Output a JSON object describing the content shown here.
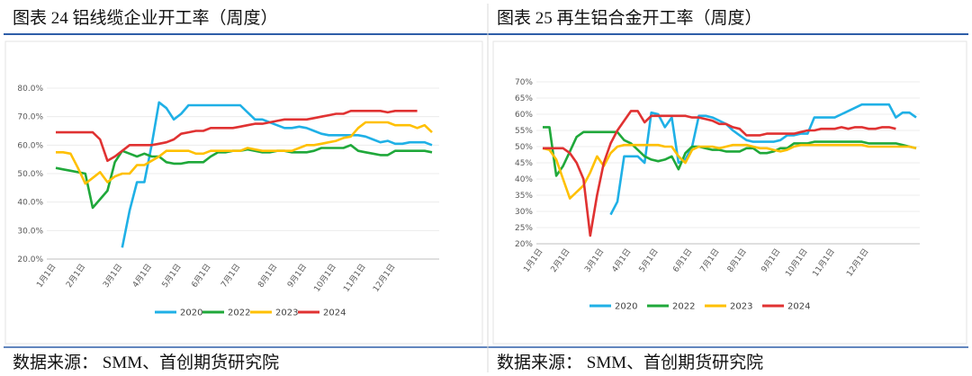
{
  "chart_data": [
    {
      "type": "line",
      "title": "图表 24 铝线缆企业开工率（周度）",
      "source": "数据来源： SMM、首创期货研究院",
      "categories": [
        "1月1日",
        null,
        null,
        null,
        "2月1日",
        null,
        null,
        null,
        null,
        "3月1日",
        null,
        null,
        null,
        "4月1日",
        null,
        null,
        null,
        "5月1日",
        null,
        null,
        null,
        "6月1日",
        null,
        null,
        null,
        "7月1日",
        null,
        null,
        null,
        null,
        "8月1日",
        null,
        null,
        null,
        "9月1日",
        null,
        null,
        null,
        "10月1日",
        null,
        null,
        null,
        "11月1日",
        null,
        null,
        null,
        "12月1日",
        null,
        null,
        null,
        null,
        null
      ],
      "ylim": [
        20,
        80
      ],
      "yticks": [
        {
          "value": 20,
          "label": "20.0%"
        },
        {
          "value": 30,
          "label": "30.0%"
        },
        {
          "value": 40,
          "label": "40.0%"
        },
        {
          "value": 50,
          "label": "50.0%"
        },
        {
          "value": 60,
          "label": "60.0%"
        },
        {
          "value": 70,
          "label": "70.0%"
        },
        {
          "value": 80,
          "label": "80.0%"
        }
      ],
      "grid": true,
      "series": [
        {
          "name": "2020",
          "color": "#1fb0e6",
          "values": [
            null,
            null,
            null,
            null,
            null,
            null,
            null,
            null,
            null,
            24,
            37,
            47,
            47,
            60,
            75,
            73,
            69,
            71,
            74,
            74,
            74,
            74,
            74,
            74,
            74,
            74,
            71.5,
            69,
            69,
            68,
            67,
            66,
            66,
            66.5,
            66,
            65,
            64,
            63.5,
            63.5,
            63.5,
            63.5,
            63.5,
            63,
            62,
            61,
            61.5,
            60.5,
            60.5,
            61,
            61,
            61,
            60
          ]
        },
        {
          "name": "2022",
          "color": "#1fa83a",
          "values": [
            52,
            51.5,
            51,
            50.5,
            50,
            38,
            41,
            44,
            54,
            58,
            57,
            56,
            57,
            56,
            56,
            54,
            53.5,
            53.5,
            54,
            54,
            54,
            56,
            57.5,
            57.5,
            58,
            58,
            58.5,
            58,
            57.5,
            57.5,
            58,
            58,
            57.5,
            57.5,
            57.5,
            58,
            59,
            59,
            59,
            59,
            60,
            58,
            57.5,
            57,
            56.5,
            56.5,
            58,
            58,
            58,
            58,
            58,
            57.5
          ]
        },
        {
          "name": "2023",
          "color": "#ffc000",
          "values": [
            57.5,
            57.5,
            57,
            52,
            46.5,
            48.5,
            50.5,
            47,
            49,
            50,
            50,
            53,
            53,
            54.5,
            56,
            58,
            58,
            58,
            58,
            57,
            57,
            58,
            58,
            58,
            58,
            58,
            59,
            58.5,
            58,
            58,
            58,
            58,
            58,
            59,
            60,
            60,
            60.5,
            61,
            61.5,
            62.5,
            63,
            66,
            68,
            68,
            68,
            68,
            67,
            67,
            67,
            66,
            67,
            64.5
          ]
        },
        {
          "name": "2024",
          "color": "#e03232",
          "values": [
            64.5,
            64.5,
            64.5,
            64.5,
            64.5,
            64.5,
            62,
            54.5,
            56,
            58,
            60,
            60,
            60,
            60,
            60.5,
            61,
            62,
            64,
            64.5,
            65,
            65,
            66,
            66,
            66,
            66,
            66.5,
            67,
            67.5,
            67.5,
            68,
            68.5,
            69,
            69,
            69,
            69,
            69.5,
            70,
            70.5,
            71,
            71,
            72,
            72,
            72,
            72,
            72,
            71.5,
            72,
            72,
            72,
            72,
            null,
            null
          ]
        }
      ]
    },
    {
      "type": "line",
      "title": "图表 25 再生铝合金开工率（周度）",
      "source": "数据来源： SMM、首创期货研究院",
      "categories": [
        "1月1日",
        null,
        null,
        null,
        "2月1日",
        null,
        null,
        null,
        null,
        "3月1日",
        null,
        null,
        null,
        "4月1日",
        null,
        null,
        null,
        "5月1日",
        null,
        null,
        null,
        null,
        "6月1日",
        null,
        null,
        null,
        "7月1日",
        null,
        null,
        null,
        "8月1日",
        null,
        null,
        null,
        null,
        "9月1日",
        null,
        null,
        null,
        "10月1日",
        null,
        null,
        null,
        "11月1日",
        null,
        null,
        null,
        null,
        "12月1日",
        null,
        null,
        null,
        null,
        null,
        null,
        null
      ],
      "ylim": [
        20,
        70
      ],
      "yticks": [
        {
          "value": 20,
          "label": "20%"
        },
        {
          "value": 25,
          "label": "25%"
        },
        {
          "value": 30,
          "label": "30%"
        },
        {
          "value": 35,
          "label": "35%"
        },
        {
          "value": 40,
          "label": "40%"
        },
        {
          "value": 45,
          "label": "45%"
        },
        {
          "value": 50,
          "label": "50%"
        },
        {
          "value": 55,
          "label": "55%"
        },
        {
          "value": 60,
          "label": "60%"
        },
        {
          "value": 65,
          "label": "65%"
        },
        {
          "value": 70,
          "label": "70%"
        }
      ],
      "grid": true,
      "series": [
        {
          "name": "2020",
          "color": "#1fb0e6",
          "values": [
            null,
            null,
            null,
            null,
            null,
            null,
            null,
            null,
            null,
            null,
            29,
            33,
            47,
            47,
            47,
            45,
            60.5,
            60,
            56,
            59,
            45,
            46,
            50,
            59.5,
            59.5,
            59,
            58,
            57,
            55,
            53.5,
            52,
            51.5,
            51.5,
            51.5,
            51.5,
            52,
            53.5,
            53.5,
            54,
            54,
            59,
            59,
            59,
            59,
            60,
            61,
            62,
            63,
            63,
            63,
            63,
            63,
            59,
            60.5,
            60.5,
            59
          ]
        },
        {
          "name": "2022",
          "color": "#1fa83a",
          "values": [
            56,
            56,
            41,
            44,
            48.5,
            53,
            54.5,
            54.5,
            54.5,
            54.5,
            54.5,
            54.5,
            52,
            51,
            49,
            47,
            46,
            45.5,
            46,
            47,
            43,
            48,
            50,
            50,
            49.5,
            49,
            49,
            48.5,
            48.5,
            48.5,
            49.5,
            49.5,
            48,
            48,
            48.5,
            49.5,
            49.5,
            51,
            51,
            51,
            51.5,
            51.5,
            51.5,
            51.5,
            51.5,
            51.5,
            51.5,
            51.5,
            51,
            51,
            51,
            51,
            51,
            50.5,
            50,
            49.5
          ]
        },
        {
          "name": "2023",
          "color": "#ffc000",
          "values": [
            49.5,
            49,
            46,
            40,
            34,
            36,
            38,
            42,
            47,
            44,
            48,
            50,
            50.5,
            50.5,
            50.5,
            50.5,
            50.5,
            50.5,
            50,
            50,
            47,
            45,
            49,
            50,
            50,
            50,
            49.5,
            50,
            50.5,
            50.5,
            50.5,
            50,
            49.5,
            49.5,
            49,
            48.5,
            49,
            50,
            50.5,
            50.5,
            50.5,
            50.5,
            50.5,
            50.5,
            50.5,
            50.5,
            50.5,
            50.5,
            50,
            50,
            50,
            50,
            50,
            50,
            50,
            49.5
          ]
        },
        {
          "name": "2024",
          "color": "#e03232",
          "values": [
            49.5,
            49.5,
            49.5,
            49.5,
            48,
            45,
            40,
            22.5,
            35,
            45,
            51,
            55,
            58,
            61,
            61,
            57.5,
            59.5,
            59.5,
            59.5,
            59.5,
            59.5,
            59.5,
            59,
            59,
            58.5,
            58,
            57,
            57,
            56,
            55.5,
            53.5,
            53.5,
            53.5,
            54,
            54,
            54,
            54,
            54,
            54.5,
            55,
            55,
            55.5,
            55.5,
            55.5,
            56,
            55.5,
            56,
            56,
            55.5,
            55.5,
            56,
            56,
            55.5,
            null,
            null,
            null
          ]
        }
      ]
    }
  ]
}
